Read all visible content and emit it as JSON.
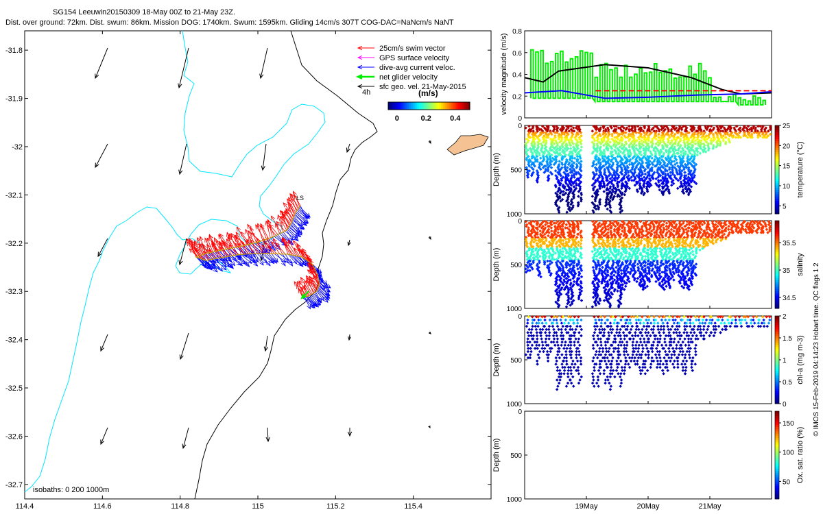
{
  "header": {
    "line1": "SG154 Leeuwin20150309 18-May 00Z to 21-May 23Z.",
    "line2": "Dist. over ground: 72km. Dist. swum: 86km. Mission DOG: 1740km. Swum: 1595km. Gliding 14cm/s 307T COG-DAC=NaNcm/s NaNT"
  },
  "credit": "© IMOS 15-Feb-2019 04:14:23 Hobart time. QC flags 1  2",
  "colors": {
    "swim": "#ff0000",
    "gps": "#ff00ff",
    "dac": "#0000ff",
    "net": "#00ee00",
    "geo": "#000000",
    "coast": "#000000",
    "isobath": "#00e5ff"
  },
  "chart_data": [
    {
      "type": "scatter",
      "name": "map",
      "xlabel": "",
      "ylabel": "",
      "xlim": [
        114.4,
        115.6
      ],
      "ylim": [
        -32.73,
        -31.76
      ],
      "xticks": [
        "114.4",
        "114.6",
        "114.8",
        "115",
        "115.2",
        "115.4"
      ],
      "yticks": [
        "-31.8",
        "-31.9",
        "-32",
        "-32.1",
        "-32.2",
        "-32.3",
        "-32.4",
        "-32.5",
        "-32.6",
        "-32.7"
      ],
      "legend": {
        "items": [
          "25cm/s swim vector",
          "GPS surface velocity",
          "dive-avg current veloc.",
          "net glider velocity",
          "sfc geo. vel. 21-May-2015"
        ],
        "time_label": "4h",
        "cbar_title": "(m/s)",
        "cbar_ticks": [
          "0",
          "0.2",
          "0.4"
        ]
      },
      "isobath_label": "isobaths: 0   200  1000m"
    },
    {
      "type": "line",
      "name": "velocity",
      "ylabel": "velocity magnitude (m/s)",
      "ylim": [
        0,
        0.8
      ],
      "yticks": [
        "0",
        "0.2",
        "0.4",
        "0.6",
        "0.8"
      ],
      "x_day_ticks": [
        {
          "label": "19May",
          "day": 1
        },
        {
          "label": "20May",
          "day": 2
        },
        {
          "label": "21May",
          "day": 3
        }
      ],
      "series": [
        {
          "color": "#000000",
          "t": [
            0,
            0.3,
            0.55,
            1.3,
            2.0,
            2.7,
            3.2,
            3.5,
            4.0
          ],
          "v": [
            0.37,
            0.33,
            0.43,
            0.49,
            0.46,
            0.37,
            0.26,
            0.22,
            0.23
          ]
        },
        {
          "color": "#0000ff",
          "t": [
            0,
            0.6,
            1.3,
            2.0,
            2.8,
            3.5,
            4.0
          ],
          "v": [
            0.23,
            0.25,
            0.18,
            0.19,
            0.21,
            0.22,
            0.24
          ]
        },
        {
          "color": "#ff0000",
          "dash": true,
          "t": [
            1.15,
            4.0
          ],
          "v": [
            0.25,
            0.25
          ]
        }
      ]
    },
    {
      "type": "heatmap",
      "name": "temperature",
      "ylabel": "Depth (m)",
      "yticks": [
        "0",
        "500",
        "1000"
      ],
      "cbar_label": "temperature (°C)",
      "cbar_ticks": [
        "5",
        "10",
        "15",
        "20",
        "25"
      ],
      "vmin": 3,
      "vmax": 25
    },
    {
      "type": "heatmap",
      "name": "salinity",
      "ylabel": "Depth (m)",
      "yticks": [
        "0",
        "500",
        "1000"
      ],
      "cbar_label": "salinity",
      "cbar_ticks": [
        "34.5",
        "35",
        "35.5"
      ],
      "vmin": 34.3,
      "vmax": 35.9
    },
    {
      "type": "heatmap",
      "name": "chla",
      "ylabel": "Depth (m)",
      "yticks": [
        "0",
        "500",
        "1000"
      ],
      "cbar_label": "chl-a (mg m-3)",
      "cbar_ticks": [
        "0",
        "0.5",
        "1",
        "1.5",
        "2"
      ],
      "vmin": 0,
      "vmax": 2
    },
    {
      "type": "heatmap",
      "name": "oxygen",
      "ylabel": "Depth (m)",
      "yticks": [
        "0",
        "500",
        "1000"
      ],
      "cbar_label": "Ox. sat. ratio (%)",
      "cbar_ticks": [
        "50",
        "100",
        "150"
      ],
      "vmin": 20,
      "vmax": 170
    }
  ]
}
